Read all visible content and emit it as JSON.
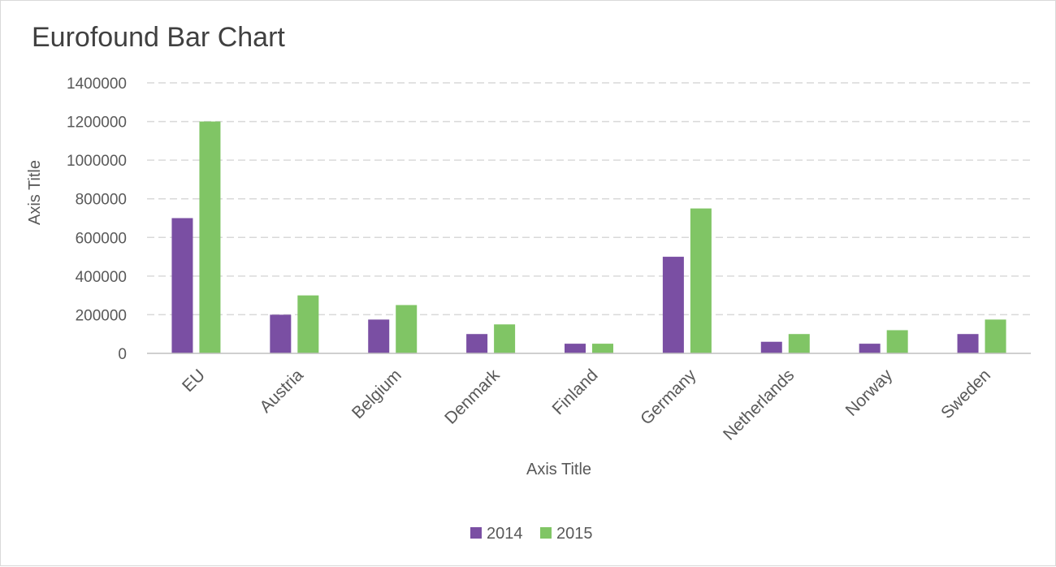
{
  "chart_data": {
    "type": "bar",
    "title": "Eurofound Bar Chart",
    "xlabel": "Axis Title",
    "ylabel": "Axis Title",
    "categories": [
      "EU",
      "Austria",
      "Belgium",
      "Denmark",
      "Finland",
      "Germany",
      "Netherlands",
      "Norway",
      "Sweden"
    ],
    "series": [
      {
        "name": "2014",
        "color": "#7a4fa3",
        "values": [
          700000,
          200000,
          175000,
          100000,
          50000,
          500000,
          60000,
          50000,
          100000
        ]
      },
      {
        "name": "2015",
        "color": "#80c565",
        "values": [
          1200000,
          300000,
          250000,
          150000,
          50000,
          750000,
          100000,
          120000,
          175000
        ]
      }
    ],
    "ylim": [
      0,
      1400000
    ],
    "yticks": [
      "0",
      "200000",
      "400000",
      "600000",
      "800000",
      "1000000",
      "1200000",
      "1400000"
    ],
    "grid": true,
    "legend": "bottom"
  }
}
